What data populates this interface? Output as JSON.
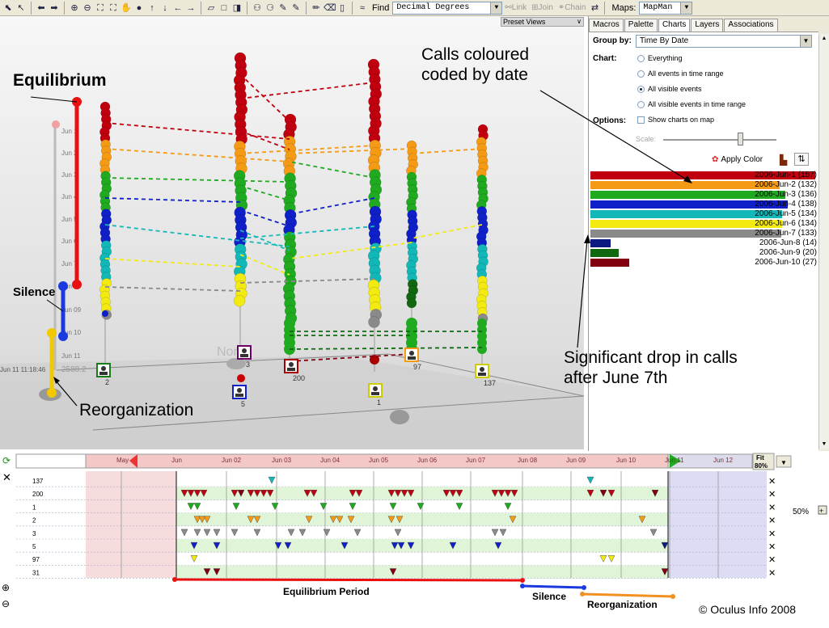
{
  "toolbar": {
    "find_label": "Find",
    "coord_format": "Decimal Degrees",
    "link_label": "Link",
    "join_label": "Join",
    "chain_label": "Chain",
    "maps_label": "Maps:",
    "maps_value": "MapMan"
  },
  "view3d": {
    "preset_views": "Preset Views",
    "nodes": [
      {
        "label": "2"
      },
      {
        "label": "3"
      },
      {
        "label": "5"
      },
      {
        "label": "200"
      },
      {
        "label": "1"
      },
      {
        "label": "97"
      },
      {
        "label": "137"
      }
    ],
    "axis_labels": [
      "Jun 1",
      "Jun 2",
      "Jun 3",
      "Jun 4",
      "Jun 5",
      "Jun 6",
      "Jun 7",
      "Jun 8",
      "Jun 09",
      "Jun 10",
      "Jun 11"
    ],
    "time_readout": "Jun 11 11:18:46",
    "coord_readout": "2588.2",
    "north_label": "Nor"
  },
  "panel": {
    "tabs": [
      "Macros",
      "Palette",
      "Charts",
      "Layers",
      "Associations"
    ],
    "active_tab": "Charts",
    "group_by_label": "Group by:",
    "group_by_value": "Time By Date",
    "chart_label": "Chart:",
    "chart_options": [
      "Everything",
      "All events in time range",
      "All visible events",
      "All visible events in time range"
    ],
    "chart_selected_index": 2,
    "options_label": "Options:",
    "show_charts_label": "Show charts on map",
    "scale_label": "Scale:",
    "apply_color_label": "Apply Color"
  },
  "legend": [
    {
      "label": "2006-Jun-1 (157)",
      "count": 157,
      "color": "#c0000e"
    },
    {
      "label": "2006-Jun-2 (132)",
      "count": 132,
      "color": "#f59a14"
    },
    {
      "label": "2006-Jun-3 (136)",
      "count": 136,
      "color": "#1faa1f"
    },
    {
      "label": "2006-Jun-4 (138)",
      "count": 138,
      "color": "#1020c8"
    },
    {
      "label": "2006-Jun-5 (134)",
      "count": 134,
      "color": "#12b7b8"
    },
    {
      "label": "2006-Jun-6 (134)",
      "count": 134,
      "color": "#f2ea10"
    },
    {
      "label": "2006-Jun-7 (133)",
      "count": 133,
      "color": "#8a8a8a"
    },
    {
      "label": "2006-Jun-8 (14)",
      "count": 14,
      "color": "#0a1a80"
    },
    {
      "label": "2006-Jun-9 (20)",
      "count": 20,
      "color": "#106810"
    },
    {
      "label": "2006-Jun-10 (27)",
      "count": 27,
      "color": "#800010"
    }
  ],
  "timeline": {
    "dates": [
      "May",
      "Jun",
      "Jun 02",
      "Jun 03",
      "Jun 04",
      "Jun 05",
      "Jun 06",
      "Jun 07",
      "Jun 08",
      "Jun 09",
      "Jun 10",
      "Jun 11",
      "Jun 12"
    ],
    "fit_label": "Fit",
    "fit_value": "80%",
    "zoom_value": "50%",
    "rows": [
      "137",
      "200",
      "1",
      "2",
      "3",
      "5",
      "97",
      "31"
    ]
  },
  "annotations": {
    "equilibrium": "Equilibrium",
    "silence": "Silence",
    "reorganization": "Reorganization",
    "calls_coloured": "Calls coloured\ncoded by date",
    "significant_drop": "Significant drop in calls\nafter June 7th",
    "equilibrium_period": "Equilibrium Period",
    "silence_period": "Silence",
    "reorganization_period": "Reorganization",
    "copyright": "© Oculus Info 2008"
  }
}
